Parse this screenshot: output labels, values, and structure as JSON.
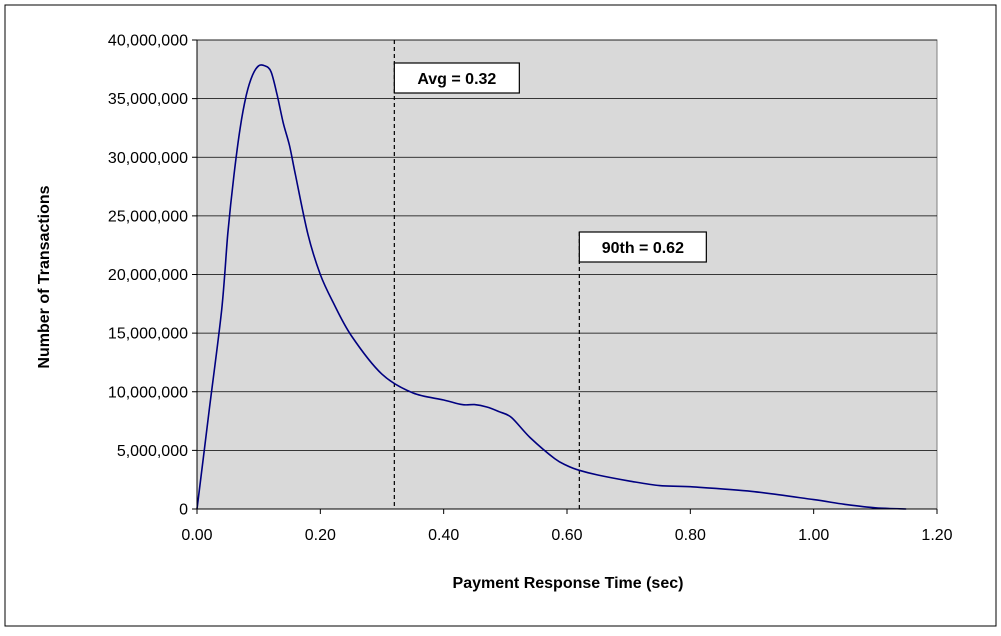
{
  "chart_data": {
    "type": "line",
    "title": "",
    "xlabel": "Payment Response Time (sec)",
    "ylabel": "Number of Transactions",
    "xlim": [
      0,
      1.2
    ],
    "ylim": [
      0,
      40000000
    ],
    "x_ticks": [
      0,
      0.2,
      0.4,
      0.6,
      0.8,
      1.0,
      1.2
    ],
    "x_tick_labels": [
      "0.00",
      "0.20",
      "0.40",
      "0.60",
      "0.80",
      "1.00",
      "1.20"
    ],
    "y_ticks": [
      0,
      5000000,
      10000000,
      15000000,
      20000000,
      25000000,
      30000000,
      35000000,
      40000000
    ],
    "y_tick_labels": [
      "0",
      "5,000,000",
      "10,000,000",
      "15,000,000",
      "20,000,000",
      "25,000,000",
      "30,000,000",
      "35,000,000",
      "40,000,000"
    ],
    "grid": true,
    "plot_background": "#d9d9d9",
    "series": [
      {
        "color": "#000080",
        "x": [
          0,
          0.02,
          0.04,
          0.05,
          0.06,
          0.07,
          0.08,
          0.09,
          0.1,
          0.11,
          0.12,
          0.13,
          0.14,
          0.15,
          0.16,
          0.18,
          0.2,
          0.22,
          0.25,
          0.3,
          0.35,
          0.4,
          0.43,
          0.45,
          0.47,
          0.49,
          0.51,
          0.54,
          0.58,
          0.6,
          0.62,
          0.65,
          0.7,
          0.75,
          0.8,
          0.9,
          1.0,
          1.05,
          1.1,
          1.15
        ],
        "y": [
          0,
          8500000,
          17000000,
          23500000,
          28500000,
          32500000,
          35300000,
          37000000,
          37800000,
          37800000,
          37300000,
          35300000,
          32900000,
          31000000,
          28400000,
          23400000,
          20000000,
          17700000,
          14800000,
          11500000,
          9900000,
          9300000,
          8900000,
          8900000,
          8700000,
          8300000,
          7800000,
          6100000,
          4300000,
          3700000,
          3300000,
          2900000,
          2400000,
          2000000,
          1900000,
          1500000,
          800000,
          400000,
          100000,
          0
        ]
      }
    ],
    "annotations": [
      {
        "x": 0.32,
        "text": "Avg = 0.32"
      },
      {
        "x": 0.62,
        "text": "90th = 0.62"
      }
    ]
  }
}
